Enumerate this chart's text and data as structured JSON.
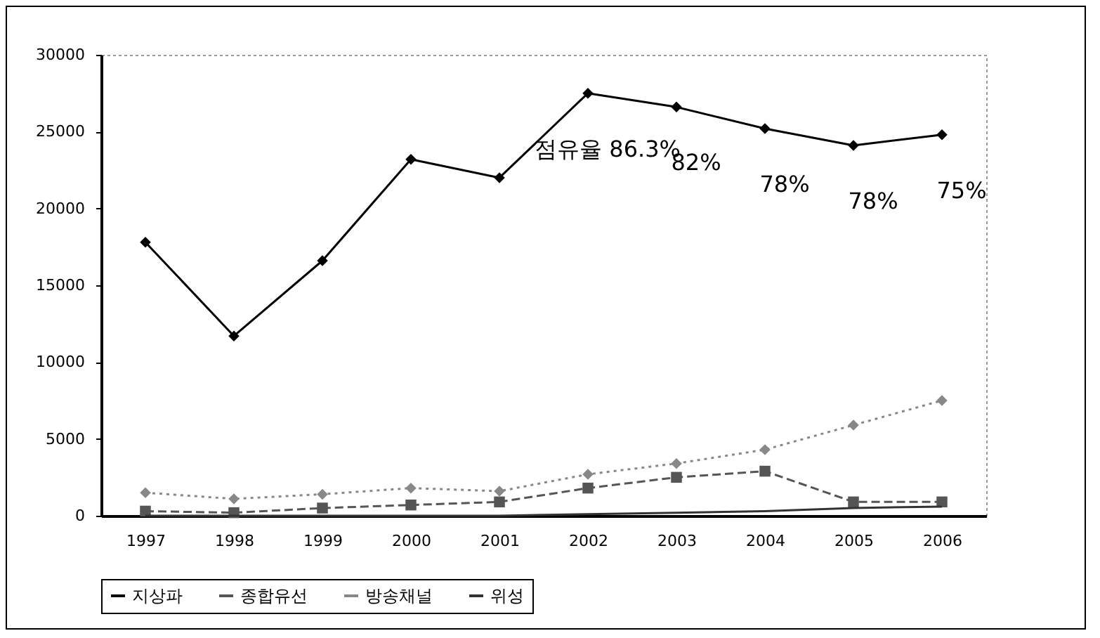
{
  "chart_data": {
    "type": "line",
    "categories": [
      "1997",
      "1998",
      "1999",
      "2000",
      "2001",
      "2002",
      "2003",
      "2004",
      "2005",
      "2006"
    ],
    "series": [
      {
        "name": "지상파",
        "color": "#000000",
        "marker": "diamond",
        "line_style": "solid",
        "values": [
          17800,
          11700,
          16600,
          23200,
          22000,
          27500,
          26600,
          25200,
          24100,
          24800
        ]
      },
      {
        "name": "종합유선",
        "color": "#555555",
        "marker": "square",
        "line_style": "dashed",
        "values": [
          300,
          200,
          500,
          700,
          900,
          1800,
          2500,
          2900,
          900,
          900
        ]
      },
      {
        "name": "방송채널",
        "color": "#888888",
        "marker": "diamond",
        "line_style": "dotted",
        "values": [
          1500,
          1100,
          1400,
          1800,
          1600,
          2700,
          3400,
          4300,
          5900,
          7500
        ]
      },
      {
        "name": "위성",
        "color": "#333333",
        "marker": "none",
        "line_style": "solid",
        "values": [
          0,
          0,
          0,
          0,
          0,
          100,
          200,
          300,
          500,
          600
        ]
      }
    ],
    "ylim": [
      0,
      30000
    ],
    "yticks": [
      0,
      5000,
      10000,
      15000,
      20000,
      25000,
      30000
    ],
    "legend": "bottom",
    "annotations": [
      "점유율 86.3%",
      "82%",
      "78%",
      "78%",
      "75%"
    ]
  }
}
